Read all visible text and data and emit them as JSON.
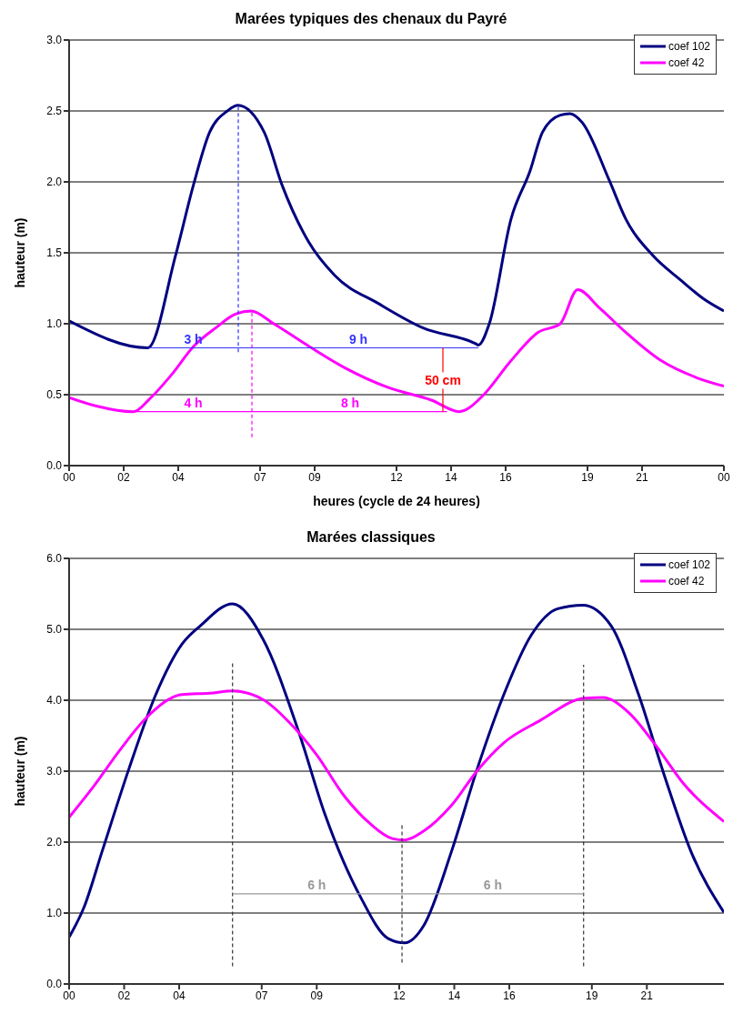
{
  "chart_data": [
    {
      "type": "line",
      "title": "Marées typiques des chenaux du Payré",
      "xlabel": "heures (cycle de 24 heures)",
      "ylabel": "hauteur (m)",
      "legend": "top right",
      "grid": "y",
      "marker": "none",
      "line_style": "solid",
      "xlim": [
        0,
        24
      ],
      "xticks": [
        {
          "value": 0,
          "label": "00"
        },
        {
          "value": 2,
          "label": "02"
        },
        {
          "value": 4,
          "label": "04"
        },
        {
          "value": 7,
          "label": "07"
        },
        {
          "value": 9,
          "label": "09"
        },
        {
          "value": 12,
          "label": "12"
        },
        {
          "value": 14,
          "label": "14"
        },
        {
          "value": 16,
          "label": "16"
        },
        {
          "value": 19,
          "label": "19"
        },
        {
          "value": 21,
          "label": "21"
        },
        {
          "value": 24,
          "label": "00"
        }
      ],
      "ylim": [
        0,
        3
      ],
      "yticks": [
        {
          "value": 0,
          "label": "0.0"
        },
        {
          "value": 0.5,
          "label": "0.5"
        },
        {
          "value": 1,
          "label": "1.0"
        },
        {
          "value": 1.5,
          "label": "1.5"
        },
        {
          "value": 2,
          "label": "2.0"
        },
        {
          "value": 2.5,
          "label": "2.5"
        },
        {
          "value": 3,
          "label": "3.0"
        }
      ],
      "series": [
        {
          "name": "coef 102",
          "color": "#000080",
          "x": [
            0,
            2.88,
            3.9,
            4.56,
            5.15,
            5.8,
            6.18,
            7.15,
            7.8,
            8.77,
            9.74,
            11.36,
            12.98,
            14.9,
            15.0,
            15.4,
            16.2,
            16.9,
            17.35,
            18.0,
            18.35,
            18.8,
            19.8,
            20.4,
            21.4,
            22.4,
            23.3,
            24
          ],
          "values": [
            1.02,
            0.83,
            1.48,
            1.98,
            2.35,
            2.5,
            2.54,
            2.35,
            1.98,
            1.58,
            1.34,
            1.14,
            0.97,
            0.86,
            0.85,
            1.0,
            1.74,
            2.08,
            2.35,
            2.47,
            2.48,
            2.42,
            2.01,
            1.74,
            1.48,
            1.31,
            1.17,
            1.09
          ]
        },
        {
          "name": "coef 42",
          "color": "#ff00ff",
          "x": [
            0,
            1.0,
            2.36,
            2.95,
            3.75,
            4.56,
            5.37,
            6.12,
            6.67,
            7.5,
            8.8,
            10.1,
            11.7,
            13.3,
            14.3,
            14.6,
            15.2,
            16.2,
            17.2,
            18.0,
            18.64,
            19.45,
            20.4,
            21.7,
            23.0,
            24
          ],
          "values": [
            0.48,
            0.42,
            0.38,
            0.47,
            0.64,
            0.84,
            0.97,
            1.07,
            1.09,
            1.0,
            0.84,
            0.69,
            0.55,
            0.46,
            0.38,
            0.4,
            0.5,
            0.74,
            0.94,
            1.0,
            1.24,
            1.11,
            0.94,
            0.74,
            0.62,
            0.56
          ]
        },
        {
          "type": "line",
          "color": "#3333ff",
          "line_style": "dashed",
          "x": [
            6.2,
            6.2
          ],
          "values": [
            0.8,
            2.54
          ]
        },
        {
          "type": "line",
          "color": "#ff00ff",
          "line_style": "dashed",
          "x": [
            6.7,
            6.7
          ],
          "values": [
            0.2,
            1.09
          ]
        },
        {
          "type": "line",
          "color": "#3333ff",
          "x": [
            2.9,
            6.2,
            15.0
          ],
          "values": [
            0.83,
            0.83,
            0.83
          ]
        },
        {
          "type": "line",
          "color": "#ff00ff",
          "x": [
            2.4,
            6.7,
            13.85
          ],
          "values": [
            0.38,
            0.38,
            0.38
          ]
        },
        {
          "type": "line",
          "color": "#ff0000",
          "x": [
            13.7,
            13.7
          ],
          "values": [
            0.38,
            0.83
          ]
        }
      ],
      "annotations": [
        {
          "text": "3 h",
          "x": 4.55,
          "y": 0.83
        },
        {
          "text": "9 h",
          "x": 10.6,
          "y": 0.83
        },
        {
          "text": "4 h",
          "x": 4.55,
          "y": 0.38
        },
        {
          "text": "8 h",
          "x": 10.3,
          "y": 0.38
        },
        {
          "text": "50 cm",
          "x": 13.7,
          "y": 0.6
        }
      ]
    },
    {
      "type": "line",
      "title": "Marées classiques",
      "ylabel": "hauteur (m)",
      "legend": "top right",
      "grid": "y",
      "marker": "none",
      "line_style": "solid",
      "xlim": [
        0,
        23.8
      ],
      "xticks": [
        {
          "value": 0,
          "label": "00"
        },
        {
          "value": 2,
          "label": "02"
        },
        {
          "value": 4,
          "label": "04"
        },
        {
          "value": 7,
          "label": "07"
        },
        {
          "value": 9,
          "label": "09"
        },
        {
          "value": 12,
          "label": "12"
        },
        {
          "value": 14,
          "label": "14"
        },
        {
          "value": 16,
          "label": "16"
        },
        {
          "value": 19,
          "label": "19"
        },
        {
          "value": 21,
          "label": "21"
        }
      ],
      "ylim": [
        0,
        6
      ],
      "yticks": [
        {
          "value": 0,
          "label": "0.0"
        },
        {
          "value": 1,
          "label": "1.0"
        },
        {
          "value": 2,
          "label": "2.0"
        },
        {
          "value": 3,
          "label": "3.0"
        },
        {
          "value": 4,
          "label": "4.0"
        },
        {
          "value": 5,
          "label": "5.0"
        },
        {
          "value": 6,
          "label": "6.0"
        }
      ],
      "series": [
        {
          "name": "coef 102",
          "color": "#000080",
          "x": [
            0,
            0.55,
            1.2,
            2.18,
            3.15,
            4.1,
            4.77,
            5.94,
            7.05,
            8.34,
            9.3,
            10.6,
            11.6,
            12.2,
            12.9,
            13.9,
            14.84,
            15.8,
            16.8,
            17.76,
            18.67,
            19.7,
            20.7,
            21.66,
            22.6,
            23.8
          ],
          "values": [
            0.66,
            1.09,
            1.87,
            3.04,
            4.08,
            4.79,
            5.05,
            5.36,
            4.86,
            3.56,
            2.39,
            1.22,
            0.64,
            0.58,
            0.83,
            1.87,
            3.04,
            4.08,
            4.92,
            5.29,
            5.34,
            5.05,
            4.08,
            2.91,
            1.87,
            1.01
          ]
        },
        {
          "name": "coef 42",
          "color": "#ff00ff",
          "x": [
            0,
            0.88,
            1.85,
            2.8,
            4.1,
            5.1,
            5.94,
            7.05,
            8.0,
            9.0,
            10.0,
            10.94,
            11.75,
            12.2,
            12.9,
            13.9,
            14.84,
            15.8,
            17.1,
            18.73,
            19.4,
            20.36,
            21.33,
            22.3,
            23.8
          ],
          "values": [
            2.35,
            2.78,
            3.3,
            3.75,
            4.08,
            4.1,
            4.13,
            4.01,
            3.69,
            3.23,
            2.65,
            2.26,
            2.05,
            2.03,
            2.16,
            2.52,
            3.01,
            3.4,
            3.71,
            4.03,
            4.04,
            3.82,
            3.36,
            2.84,
            2.29
          ]
        },
        {
          "type": "line",
          "color": "#333333",
          "line_style": "dashed",
          "x": [
            5.94,
            5.94
          ],
          "values": [
            0.25,
            4.55
          ]
        },
        {
          "type": "line",
          "color": "#333333",
          "line_style": "dashed",
          "x": [
            12.1,
            12.1
          ],
          "values": [
            0.3,
            2.25
          ]
        },
        {
          "type": "line",
          "color": "#333333",
          "line_style": "dashed",
          "x": [
            18.7,
            18.7
          ],
          "values": [
            0.25,
            4.5
          ]
        },
        {
          "type": "line",
          "color": "#999999",
          "x": [
            5.94,
            12.1,
            18.7
          ],
          "values": [
            1.27,
            1.27,
            1.27
          ]
        }
      ],
      "annotations": [
        {
          "text": "6 h",
          "x": 9.0,
          "y": 1.27
        },
        {
          "text": "6 h",
          "x": 15.4,
          "y": 1.27
        }
      ]
    }
  ]
}
